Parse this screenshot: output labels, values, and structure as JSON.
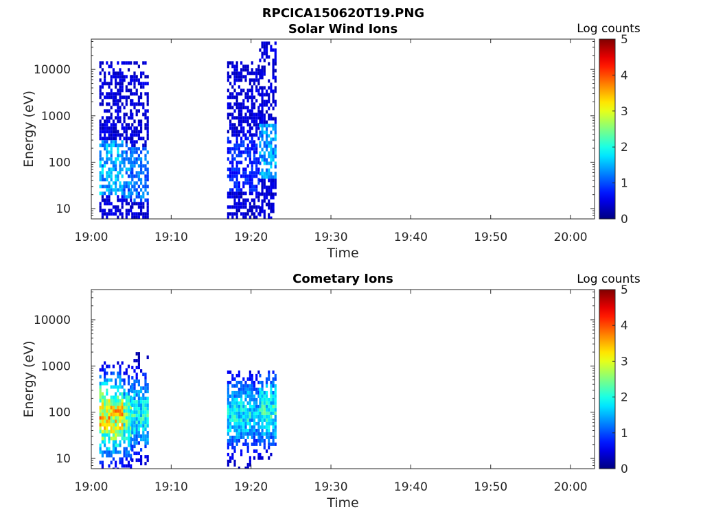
{
  "figure": {
    "title": "RPCICA150620T19.PNG"
  },
  "colors": {
    "colormap": "jet",
    "axis": "#262626",
    "background": "#ffffff"
  },
  "chart_data": [
    {
      "type": "heatmap",
      "title": "Solar Wind Ions",
      "xlabel": "Time",
      "ylabel": "Energy (eV)",
      "yscale": "log",
      "ylim": [
        6,
        45000
      ],
      "xlim": [
        "19:00",
        "20:03"
      ],
      "xticks": [
        "19:00",
        "19:10",
        "19:20",
        "19:30",
        "19:40",
        "19:50",
        "20:00"
      ],
      "yticks": [
        10,
        100,
        1000,
        10000
      ],
      "ytick_labels": [
        "10",
        "100",
        "1000",
        "10000"
      ],
      "colorbar": {
        "label": "Log counts",
        "range": [
          0,
          5
        ],
        "ticks": [
          "0",
          "1",
          "2",
          "3",
          "4",
          "5"
        ]
      },
      "grid": false,
      "bursts": [
        {
          "t_start": "19:01",
          "t_end": "19:04",
          "e_min": 6,
          "e_max": 15000,
          "peak_log_counts": 1.9,
          "peak_energy": 80
        },
        {
          "t_start": "19:04",
          "t_end": "19:05",
          "e_min": 6,
          "e_max": 15000,
          "peak_log_counts": 1.6,
          "peak_energy": 70
        },
        {
          "t_start": "19:05",
          "t_end": "19:07",
          "e_min": 6,
          "e_max": 15000,
          "peak_log_counts": 1.5,
          "peak_energy": 60
        },
        {
          "t_start": "19:17",
          "t_end": "19:20",
          "e_min": 6,
          "e_max": 15000,
          "peak_log_counts": 1.0,
          "peak_energy": 100
        },
        {
          "t_start": "19:20",
          "t_end": "19:21",
          "e_min": 6,
          "e_max": 15000,
          "peak_log_counts": 1.0,
          "peak_energy": 100
        },
        {
          "t_start": "19:21",
          "t_end": "19:23",
          "e_min": 6,
          "e_max": 40000,
          "peak_log_counts": 1.8,
          "peak_energy": 200
        }
      ]
    },
    {
      "type": "heatmap",
      "title": "Cometary Ions",
      "xlabel": "Time",
      "ylabel": "Energy (eV)",
      "yscale": "log",
      "ylim": [
        6,
        45000
      ],
      "xlim": [
        "19:00",
        "20:03"
      ],
      "xticks": [
        "19:00",
        "19:10",
        "19:20",
        "19:30",
        "19:40",
        "19:50",
        "20:00"
      ],
      "yticks": [
        10,
        100,
        1000,
        10000
      ],
      "ytick_labels": [
        "10",
        "100",
        "1000",
        "10000"
      ],
      "colorbar": {
        "label": "Log counts",
        "range": [
          0,
          5
        ],
        "ticks": [
          "0",
          "1",
          "2",
          "3",
          "4",
          "5"
        ]
      },
      "grid": false,
      "bursts": [
        {
          "t_start": "19:01",
          "t_end": "19:04",
          "e_min": 6,
          "e_max": 1500,
          "peak_log_counts": 4.0,
          "peak_energy": 90
        },
        {
          "t_start": "19:04",
          "t_end": "19:05",
          "e_min": 6,
          "e_max": 1500,
          "peak_log_counts": 3.0,
          "peak_energy": 80
        },
        {
          "t_start": "19:05",
          "t_end": "19:07",
          "e_min": 6,
          "e_max": 2000,
          "peak_log_counts": 2.5,
          "peak_energy": 100
        },
        {
          "t_start": "19:17",
          "t_end": "19:20",
          "e_min": 6,
          "e_max": 800,
          "peak_log_counts": 2.3,
          "peak_energy": 100
        },
        {
          "t_start": "19:20",
          "t_end": "19:21",
          "e_min": 10,
          "e_max": 800,
          "peak_log_counts": 2.0,
          "peak_energy": 100
        },
        {
          "t_start": "19:21",
          "t_end": "19:23",
          "e_min": 10,
          "e_max": 800,
          "peak_log_counts": 2.5,
          "peak_energy": 120
        }
      ]
    }
  ]
}
